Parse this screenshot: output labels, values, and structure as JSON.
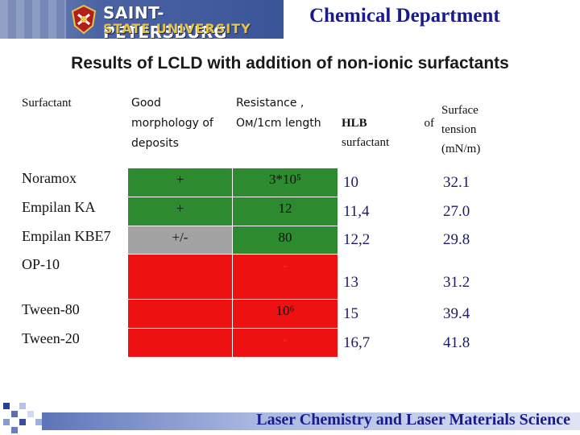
{
  "header": {
    "university_line1": "SAINT-PETERSBURG",
    "university_line2": "STATE UNIVERSITY",
    "department": "Chemical Department"
  },
  "slide_title": "Results of LCLD with addition of non-ionic surfactants",
  "table": {
    "headers": {
      "surfactant": "Surfactant",
      "morphology": [
        "Good",
        "morphology of",
        "deposits"
      ],
      "resistance": [
        "Resistance ,",
        "Ом/1cm length"
      ],
      "hlb": [
        "HLB",
        "of",
        "surfactant"
      ],
      "tension": [
        "Surface",
        "tension",
        "(mN/m)"
      ]
    },
    "rows": [
      {
        "name": "Noramox",
        "morphology": "+",
        "morphology_color": "#2e8a2e",
        "resistance": "3*10⁵",
        "resistance_color": "#2e8a2e",
        "hlb": "10",
        "tension": "32.1"
      },
      {
        "name": "Empilan KA",
        "morphology": "+",
        "morphology_color": "#2e8a2e",
        "resistance": "12",
        "resistance_color": "#2e8a2e",
        "hlb": "11,4",
        "tension": "27.0"
      },
      {
        "name": "Empilan KBE7",
        "morphology": "+/-",
        "morphology_color": "#a3a3a3",
        "resistance": "80",
        "resistance_color": "#2e8a2e",
        "hlb": "12,2",
        "tension": "29.8"
      },
      {
        "name": "OP-10",
        "morphology": "",
        "morphology_color": "#ee1111",
        "resistance": "-",
        "resistance_color": "#ee1111",
        "hlb": "13",
        "tension": "31.2"
      },
      {
        "name": "Tween-80",
        "morphology": "",
        "morphology_color": "#ee1111",
        "resistance": "10⁶",
        "resistance_color": "#ee1111",
        "hlb": "15",
        "tension": "39.4"
      },
      {
        "name": "Tween-20",
        "morphology": "",
        "morphology_color": "#ee1111",
        "resistance": "-",
        "resistance_color": "#ee1111",
        "hlb": "16,7",
        "tension": "41.8"
      }
    ]
  },
  "footer": {
    "text": "Laser Chemistry and Laser Materials Science"
  }
}
